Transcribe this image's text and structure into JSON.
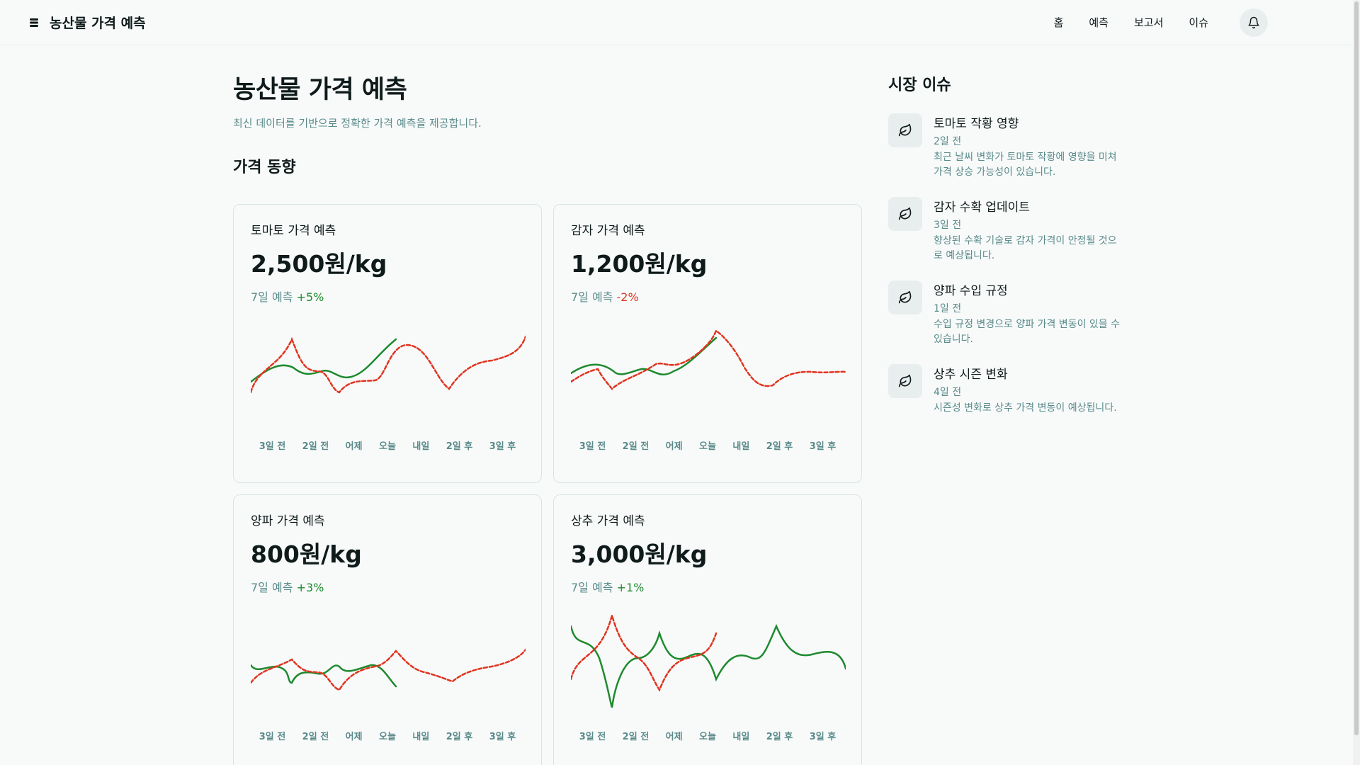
{
  "header": {
    "brand": "농산물 가격 예측",
    "nav": [
      "홈",
      "예측",
      "보고서",
      "이슈"
    ]
  },
  "main": {
    "title": "농산물 가격 예측",
    "subtitle": "최신 데이터를 기반으로 정확한 가격 예측을 제공합니다.",
    "section_title": "가격 동향",
    "forecast_label": "7일 예측",
    "x_labels": [
      "3일 전",
      "2일 전",
      "어제",
      "오늘",
      "내일",
      "2일 후",
      "3일 후"
    ],
    "cards": [
      {
        "title": "토마토 가격 예측",
        "price": "2,500원/kg",
        "change": "+5%",
        "trend": "up"
      },
      {
        "title": "감자 가격 예측",
        "price": "1,200원/kg",
        "change": "-2%",
        "trend": "down"
      },
      {
        "title": "양파 가격 예측",
        "price": "800원/kg",
        "change": "+3%",
        "trend": "up"
      },
      {
        "title": "상추 가격 예측",
        "price": "3,000원/kg",
        "change": "+1%",
        "trend": "up"
      }
    ]
  },
  "aside": {
    "title": "시장 이슈",
    "issues": [
      {
        "title": "토마토 작황 영향",
        "ago": "2일 전",
        "desc": "최근 날씨 변화가 토마토 작황에 영향을 미쳐 가격 상승 가능성이 있습니다."
      },
      {
        "title": "감자 수확 업데이트",
        "ago": "3일 전",
        "desc": "향상된 수확 기술로 감자 가격이 안정될 것으로 예상됩니다."
      },
      {
        "title": "양파 수입 규정",
        "ago": "1일 전",
        "desc": "수입 규정 변경으로 양파 가격 변동이 있을 수 있습니다."
      },
      {
        "title": "상추 시즌 변화",
        "ago": "4일 전",
        "desc": "시즌성 변화로 상추 가격 변동이 예상됩니다."
      }
    ]
  },
  "colors": {
    "actual": "#1e8a2e",
    "forecast": "#e0341e",
    "muted": "#5a8a8a"
  },
  "icons": {
    "logo": "layers-icon",
    "bell": "bell-icon",
    "issue": "leaf-icon"
  }
}
